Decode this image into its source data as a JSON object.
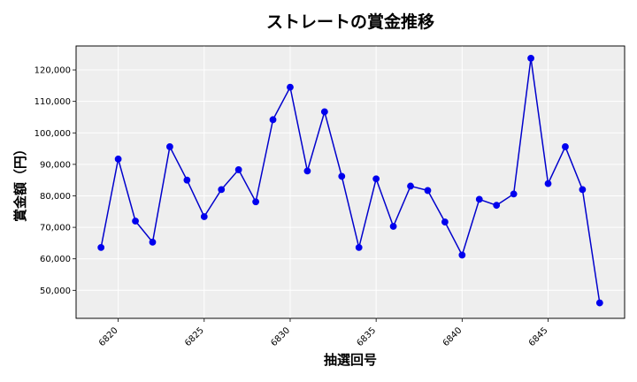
{
  "chart_data": {
    "type": "line",
    "title": "ストレートの賞金推移",
    "xlabel": "抽選回号",
    "ylabel": "賞金額（円）",
    "x": [
      6819,
      6820,
      6821,
      6822,
      6823,
      6824,
      6825,
      6826,
      6827,
      6828,
      6829,
      6830,
      6831,
      6832,
      6833,
      6834,
      6835,
      6836,
      6837,
      6838,
      6839,
      6840,
      6841,
      6842,
      6843,
      6844,
      6845,
      6846,
      6847,
      6848
    ],
    "series": [
      {
        "values": [
          63600,
          91700,
          72000,
          65300,
          95600,
          85000,
          73400,
          82000,
          88300,
          78100,
          104200,
          114500,
          87900,
          106700,
          86200,
          63600,
          85400,
          70300,
          83100,
          81700,
          71700,
          61200,
          78900,
          77000,
          80600,
          123700,
          83900,
          95600,
          82000,
          46000
        ]
      }
    ],
    "x_ticks": [
      "6820",
      "6825",
      "6830",
      "6835",
      "6840",
      "6845"
    ],
    "y_ticks": [
      "50,000",
      "60,000",
      "70,000",
      "80,000",
      "90,000",
      "100,000",
      "110,000",
      "120,000"
    ],
    "xlim": [
      6817.55,
      6849.45
    ],
    "ylim": [
      41100,
      127600
    ],
    "grid": true,
    "line_color": "#0000cc",
    "marker_color": "#0000ee",
    "background_color": "#eeeeee"
  }
}
